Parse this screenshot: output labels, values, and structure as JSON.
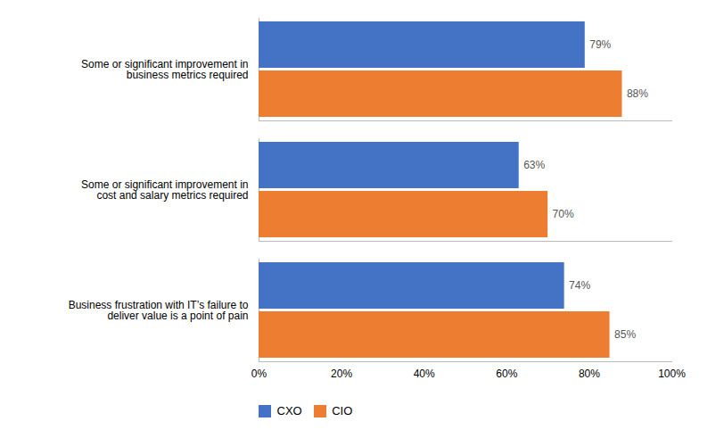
{
  "chart_data": {
    "type": "bar",
    "orientation": "horizontal",
    "categories": [
      "Business frustration with IT’s failure to\ndeliver value is a point of pain",
      "Some or significant improvement in\ncost and salary metrics required",
      "Some or significant improvement in\nbusiness metrics required"
    ],
    "series": [
      {
        "name": "CXO",
        "color": "#4472C4",
        "values": [
          74,
          63,
          79
        ],
        "value_labels": [
          "74%",
          "63%",
          "79%"
        ]
      },
      {
        "name": "CIO",
        "color": "#ED7D31",
        "values": [
          85,
          70,
          88
        ],
        "value_labels": [
          "85%",
          "70%",
          "88%"
        ]
      }
    ],
    "xlim": [
      0,
      100
    ],
    "xticks": [
      {
        "value": 0,
        "label": "0%"
      },
      {
        "value": 20,
        "label": "20%"
      },
      {
        "value": 40,
        "label": "40%"
      },
      {
        "value": 60,
        "label": "60%"
      },
      {
        "value": 80,
        "label": "80%"
      },
      {
        "value": 100,
        "label": "100%"
      }
    ],
    "data_labels": true,
    "legend": "bottom",
    "grid": false
  }
}
